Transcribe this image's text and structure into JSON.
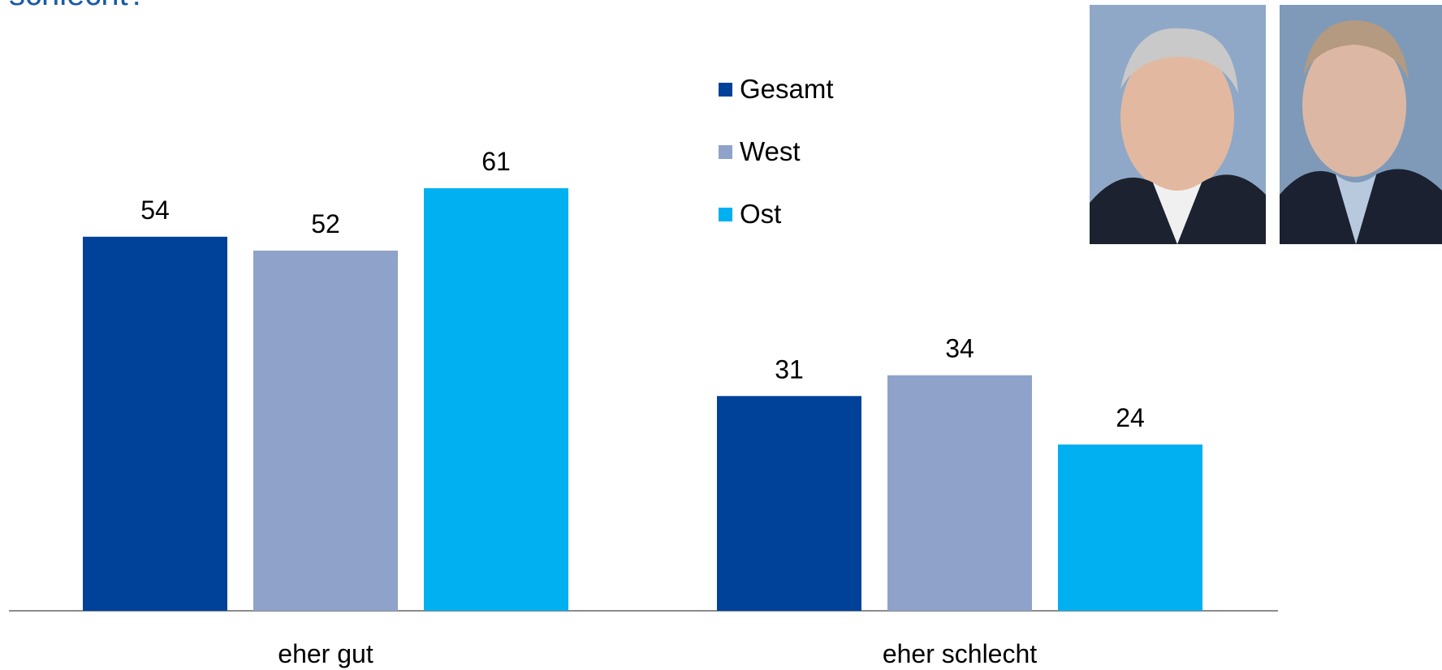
{
  "chart_data": {
    "type": "bar",
    "title": "schlecht?",
    "categories": [
      "eher gut",
      "eher schlecht"
    ],
    "series": [
      {
        "name": "Gesamt",
        "color": "#00429a",
        "values": [
          54,
          31
        ]
      },
      {
        "name": "West",
        "color": "#8fa2c9",
        "values": [
          52,
          34
        ]
      },
      {
        "name": "Ost",
        "color": "#00b0f0",
        "values": [
          61,
          24
        ]
      }
    ],
    "legend": "top-right"
  }
}
